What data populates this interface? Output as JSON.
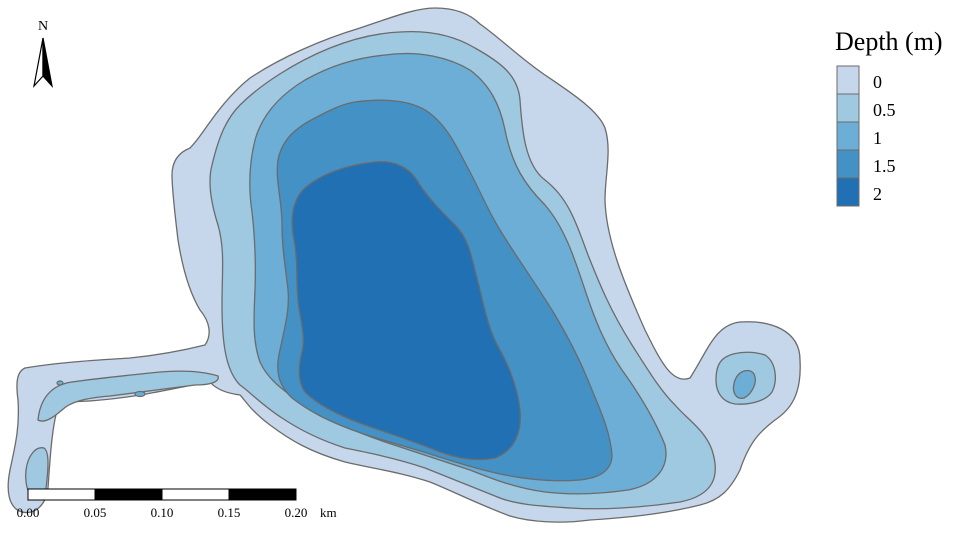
{
  "legend": {
    "title": "Depth (m)",
    "items": [
      {
        "label": "0",
        "color": "#c6d7ec"
      },
      {
        "label": "0.5",
        "color": "#9ec9e1"
      },
      {
        "label": "1",
        "color": "#6caed6"
      },
      {
        "label": "1.5",
        "color": "#4391c5"
      },
      {
        "label": "2",
        "color": "#2170b4"
      }
    ]
  },
  "north_arrow": {
    "label": "N"
  },
  "scale_bar": {
    "ticks": [
      "0.00",
      "0.05",
      "0.10",
      "0.15",
      "0.20"
    ],
    "unit": "km"
  },
  "colors": {
    "contour_line": "#6b6b6b",
    "background": "#ffffff"
  }
}
